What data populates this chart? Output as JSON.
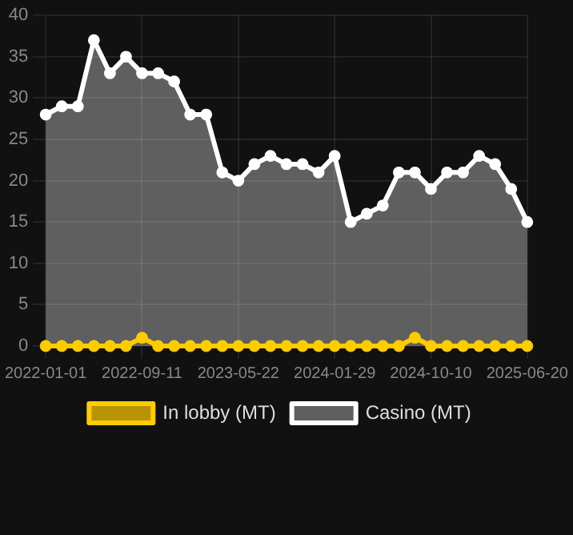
{
  "chart_data": {
    "type": "line",
    "categories": [
      "2022-01-01",
      null,
      null,
      null,
      null,
      null,
      "2022-09-11",
      null,
      null,
      null,
      null,
      null,
      "2023-05-22",
      null,
      null,
      null,
      null,
      null,
      "2024-01-29",
      null,
      null,
      null,
      null,
      null,
      "2024-10-10",
      null,
      null,
      null,
      null,
      null,
      "2025-06-20"
    ],
    "series": [
      {
        "name": "In lobby (MT)",
        "type": "line",
        "color": "#ffcc00",
        "values": [
          0,
          0,
          0,
          0,
          0,
          0,
          1,
          0,
          0,
          0,
          0,
          0,
          0,
          0,
          0,
          0,
          0,
          0,
          0,
          0,
          0,
          0,
          0,
          1,
          0,
          0,
          0,
          0,
          0,
          0,
          0
        ]
      },
      {
        "name": "Casino (MT)",
        "type": "area",
        "color": "#ffffff",
        "values": [
          28,
          29,
          29,
          37,
          33,
          35,
          33,
          33,
          32,
          28,
          28,
          21,
          20,
          22,
          23,
          22,
          22,
          21,
          23,
          15,
          16,
          17,
          21,
          21,
          19,
          21,
          21,
          23,
          22,
          19,
          15
        ]
      }
    ],
    "ylim": [
      0,
      40
    ],
    "yticks": [
      0,
      5,
      10,
      15,
      20,
      25,
      30,
      35,
      40
    ],
    "grid": true,
    "legend": "bottom",
    "marker": "circle"
  }
}
